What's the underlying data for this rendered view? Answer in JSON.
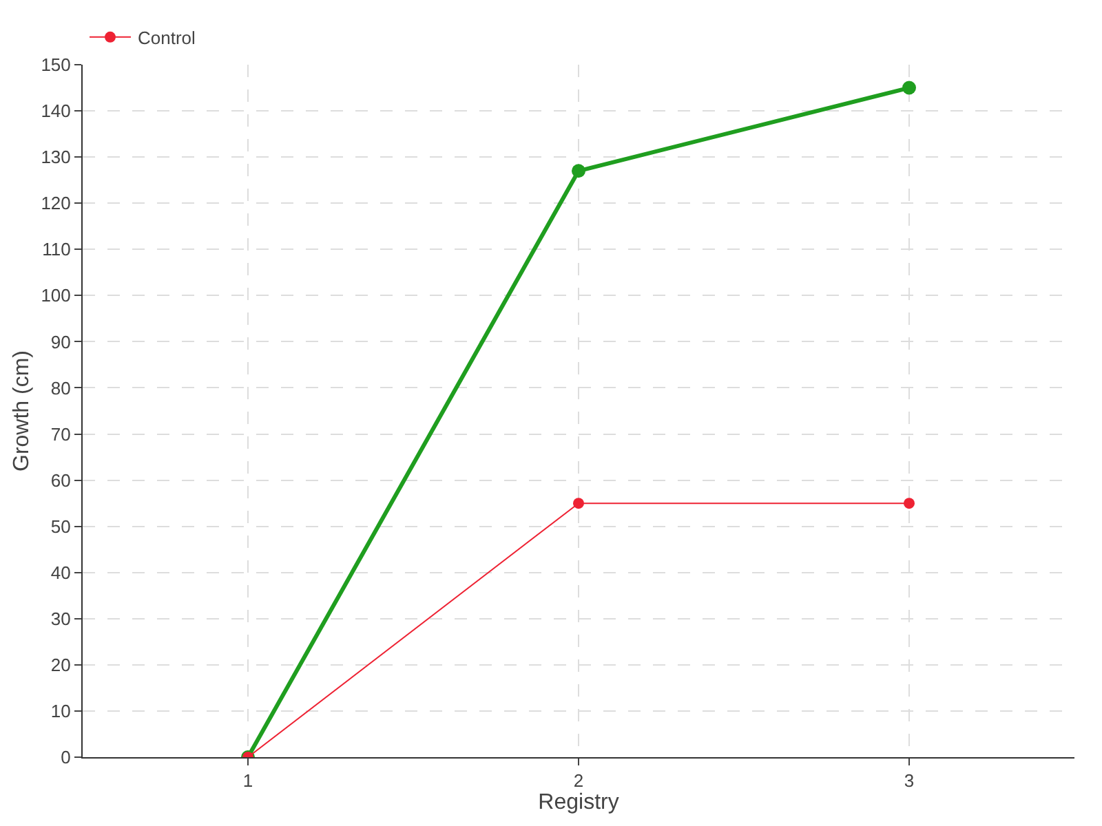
{
  "chart_data": {
    "type": "line",
    "xlabel": "Registry",
    "ylabel": "Growth (cm)",
    "x": [
      1,
      2,
      3
    ],
    "series": [
      {
        "color": "#1f9e1f",
        "values": [
          0,
          127,
          145
        ]
      },
      {
        "name": "Control",
        "color": "#ee2233",
        "values": [
          0,
          55,
          55
        ]
      }
    ],
    "xlim": [
      0.5,
      3.5
    ],
    "xticks": [
      1,
      2,
      3
    ],
    "ylim": [
      0,
      150
    ],
    "yticks": [
      0,
      10,
      20,
      30,
      40,
      50,
      60,
      70,
      80,
      90,
      100,
      110,
      120,
      130,
      140,
      150
    ],
    "grid": true,
    "legend": "top left",
    "marker": "circle",
    "line_style": "solid"
  }
}
